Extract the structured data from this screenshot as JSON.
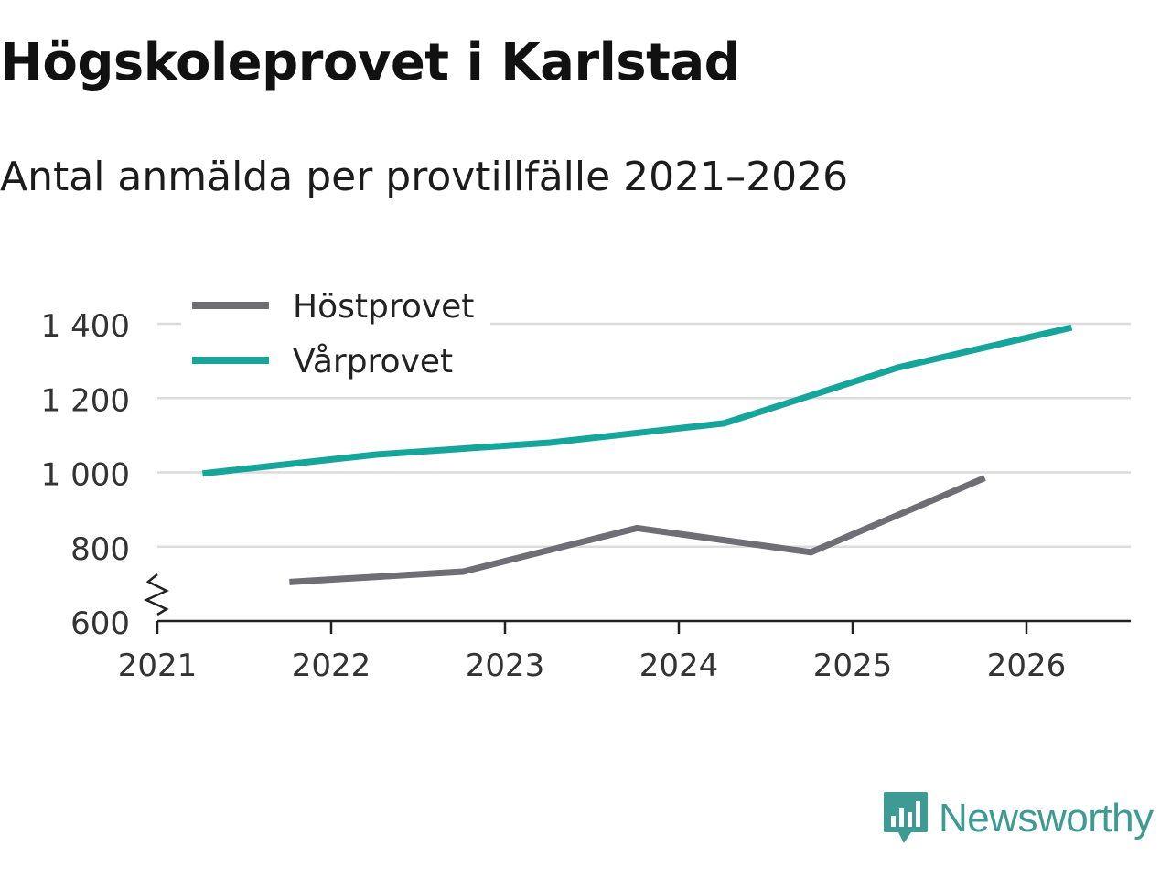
{
  "chart_data": {
    "type": "line",
    "title": "Högskoleprovet i Karlstad",
    "subtitle": "Antal anmälda per provtillfälle 2021–2026",
    "xlabel": "",
    "ylabel": "",
    "x_ticks": [
      "2021",
      "2022",
      "2023",
      "2024",
      "2025",
      "2026"
    ],
    "xlim": [
      2021,
      2026.6
    ],
    "ylim": [
      600,
      1400
    ],
    "y_ticks": [
      600,
      800,
      1000,
      1200,
      1400
    ],
    "y_tick_labels": [
      "600",
      "800",
      "1 000",
      "1 200",
      "1 400"
    ],
    "axis_break": true,
    "grid": true,
    "legend_position": "top-left",
    "series": [
      {
        "name": "Höstprovet",
        "color": "#6f6e75",
        "x": [
          2021.76,
          2022.76,
          2023.76,
          2024.76,
          2025.76
        ],
        "values": [
          705,
          733,
          850,
          785,
          985
        ]
      },
      {
        "name": "Vårprovet",
        "color": "#15a59a",
        "x": [
          2021.26,
          2022.26,
          2023.26,
          2024.26,
          2025.26,
          2026.26
        ],
        "values": [
          997,
          1048,
          1080,
          1132,
          1282,
          1390
        ]
      }
    ]
  },
  "brand": {
    "name": "Newsworthy",
    "color": "#3d9b94"
  }
}
